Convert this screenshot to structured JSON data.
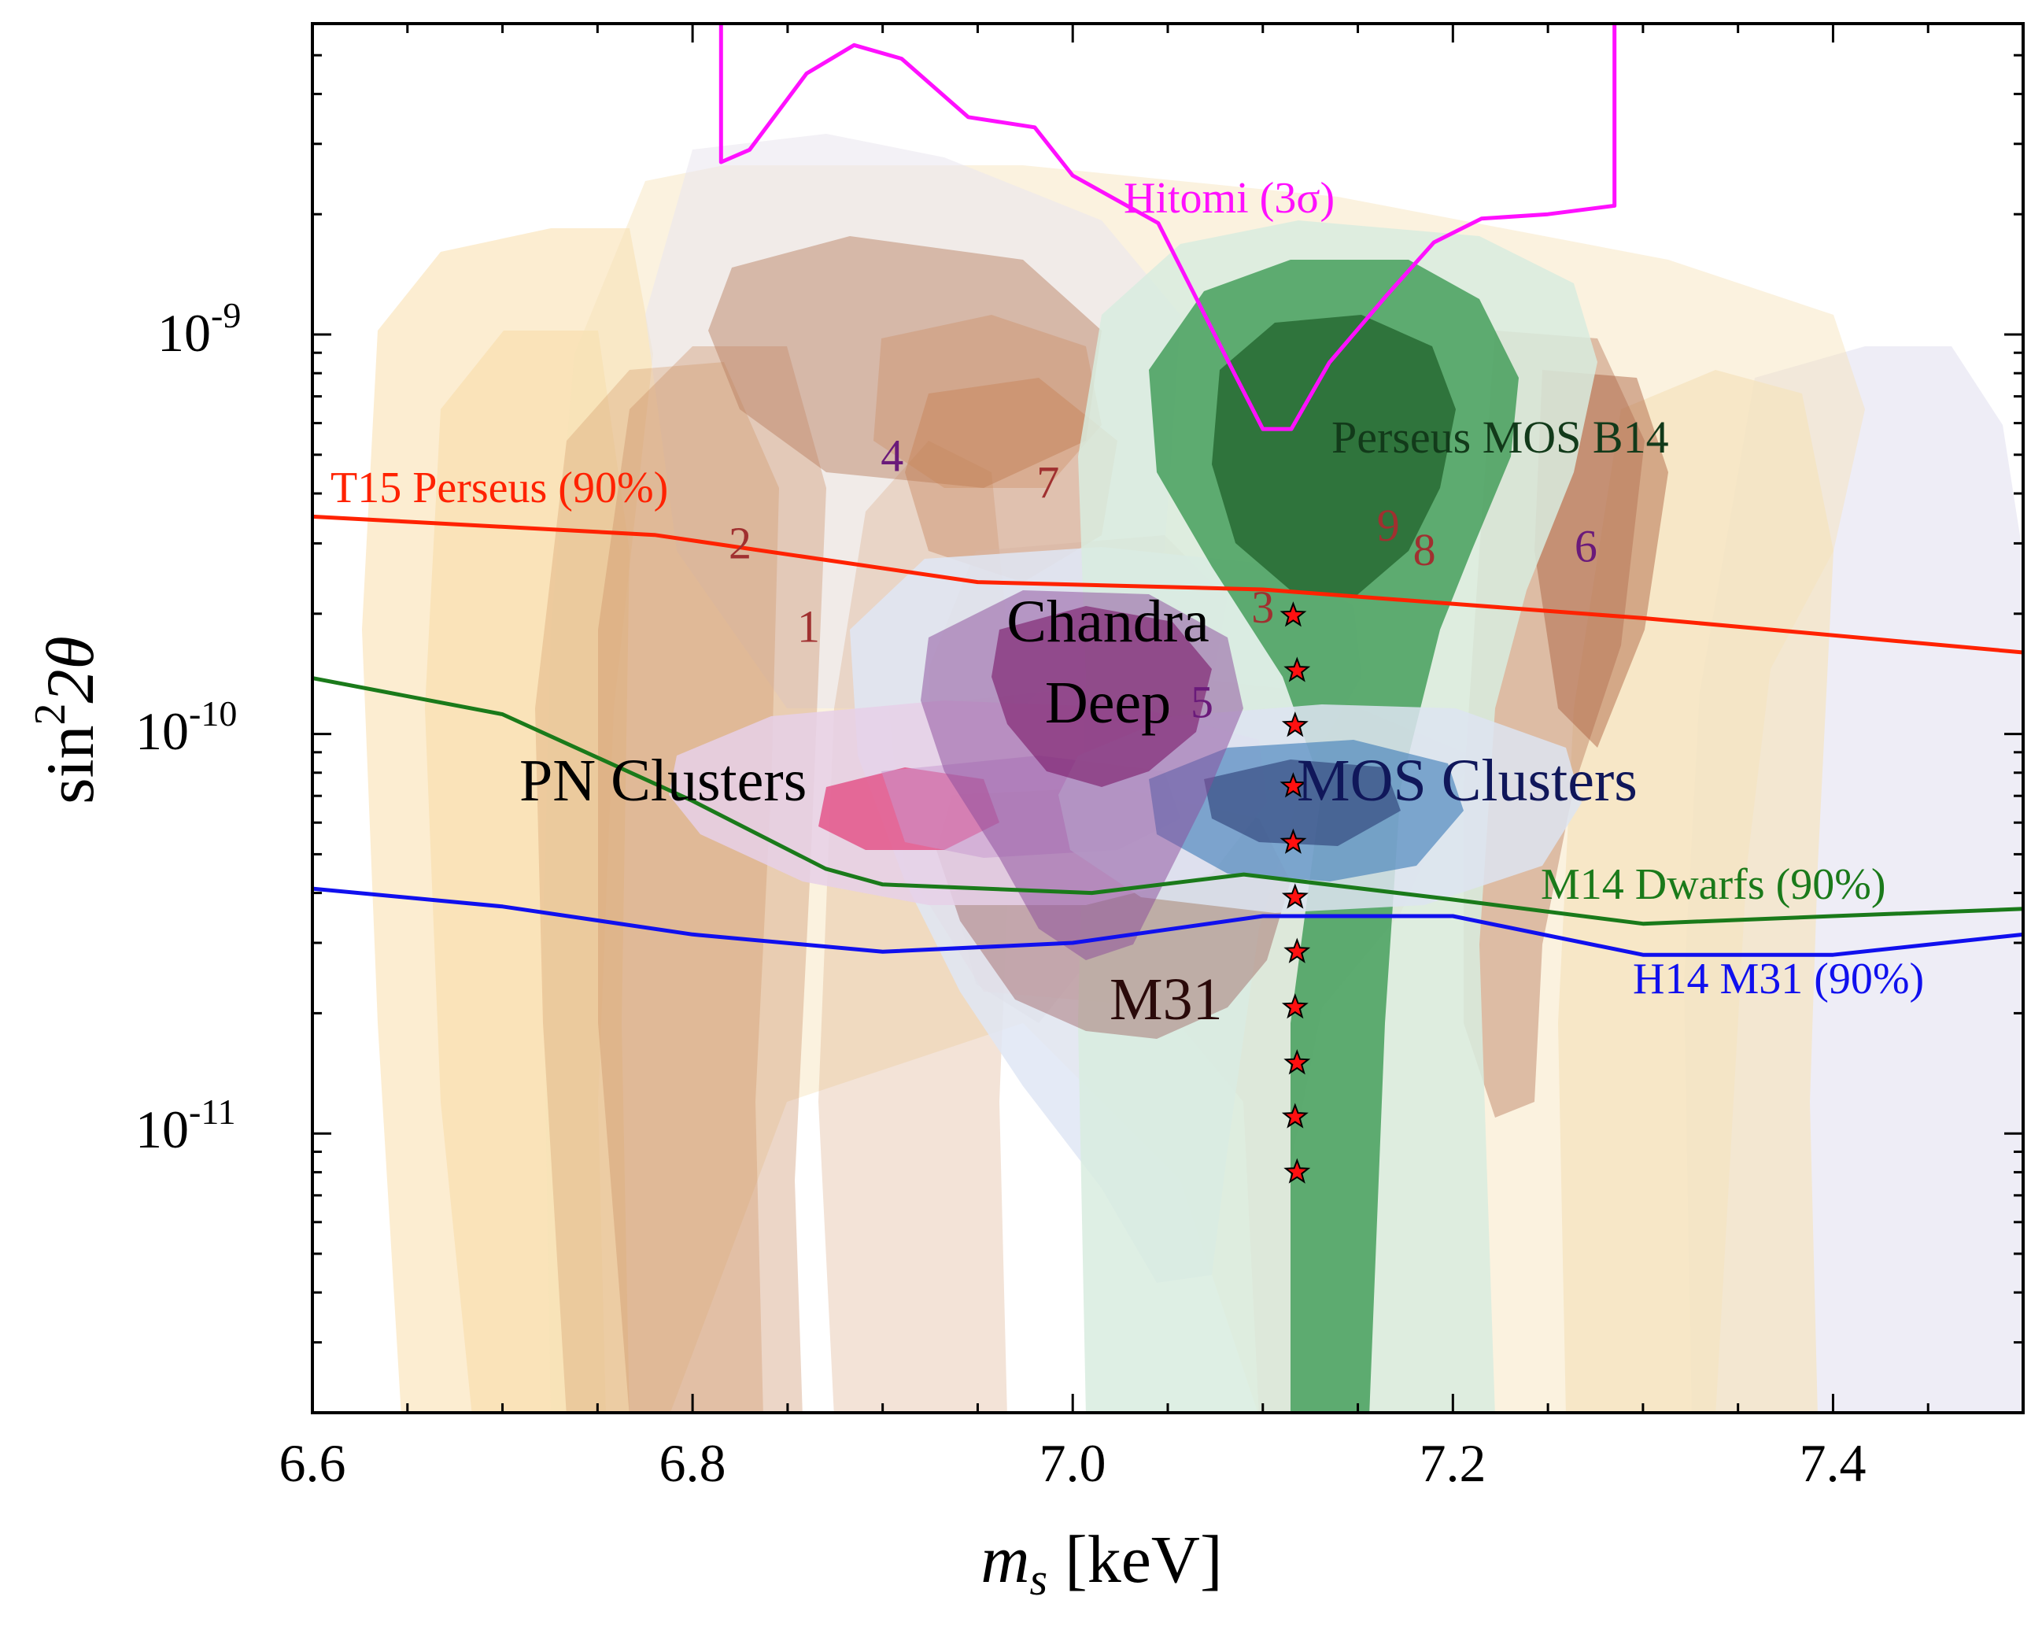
{
  "chart_data": {
    "type": "region",
    "title": "",
    "xlabel": {
      "main": "m",
      "sub": "s",
      "unit": "[keV]"
    },
    "ylabel": {
      "main": "sin",
      "sup": "2",
      "tail": "2θ"
    },
    "xlim": [
      6.6,
      7.5
    ],
    "ylim": [
      2e-12,
      6e-09
    ],
    "yscale": "log",
    "x_ticks": [
      {
        "value": 6.6,
        "label": "6.6"
      },
      {
        "value": 6.8,
        "label": "6.8"
      },
      {
        "value": 7.0,
        "label": "7.0"
      },
      {
        "value": 7.2,
        "label": "7.2"
      },
      {
        "value": 7.4,
        "label": "7.4"
      }
    ],
    "y_ticks": [
      {
        "value": 1e-11,
        "base": "10",
        "exp": "-11"
      },
      {
        "value": 1e-10,
        "base": "10",
        "exp": "-10"
      },
      {
        "value": 1e-09,
        "base": "10",
        "exp": "-9"
      }
    ],
    "lines": [
      {
        "name": "T15 Perseus (90%)",
        "label": "T15 Perseus (90%)",
        "color": "#ff2200",
        "points": [
          [
            6.6,
            3.5e-10
          ],
          [
            6.78,
            3.15e-10
          ],
          [
            6.95,
            2.4e-10
          ],
          [
            7.1,
            2.3e-10
          ],
          [
            7.3,
            1.95e-10
          ],
          [
            7.5,
            1.6e-10
          ]
        ]
      },
      {
        "name": "M14 Dwarfs (90%)",
        "label": "M14 Dwarfs (90%)",
        "color": "#1a7a1a",
        "points": [
          [
            6.6,
            1.38e-10
          ],
          [
            6.7,
            1.12e-10
          ],
          [
            6.8,
            6.8e-11
          ],
          [
            6.87,
            4.6e-11
          ],
          [
            6.9,
            4.2e-11
          ],
          [
            7.01,
            4e-11
          ],
          [
            7.09,
            4.45e-11
          ],
          [
            7.2,
            3.85e-11
          ],
          [
            7.3,
            3.35e-11
          ],
          [
            7.4,
            3.5e-11
          ],
          [
            7.5,
            3.65e-11
          ]
        ]
      },
      {
        "name": "H14 M31 (90%)",
        "label": "H14 M31 (90%)",
        "color": "#1010ee",
        "points": [
          [
            6.6,
            4.1e-11
          ],
          [
            6.7,
            3.7e-11
          ],
          [
            6.8,
            3.15e-11
          ],
          [
            6.9,
            2.85e-11
          ],
          [
            7.0,
            3e-11
          ],
          [
            7.1,
            3.5e-11
          ],
          [
            7.2,
            3.5e-11
          ],
          [
            7.3,
            2.8e-11
          ],
          [
            7.4,
            2.8e-11
          ],
          [
            7.5,
            3.15e-11
          ]
        ]
      },
      {
        "name": "Hitomi (3σ)",
        "label": "Hitomi (3σ)",
        "color": "#ff10ff",
        "points": [
          [
            6.815,
            1e-08
          ],
          [
            6.815,
            2.7e-09
          ],
          [
            6.83,
            2.9e-09
          ],
          [
            6.86,
            4.5e-09
          ],
          [
            6.885,
            5.3e-09
          ],
          [
            6.91,
            4.9e-09
          ],
          [
            6.945,
            3.5e-09
          ],
          [
            6.98,
            3.3e-09
          ],
          [
            7.0,
            2.5e-09
          ],
          [
            7.045,
            1.9e-09
          ],
          [
            7.085,
            8e-10
          ],
          [
            7.1,
            5.8e-10
          ],
          [
            7.115,
            5.8e-10
          ],
          [
            7.135,
            8.5e-10
          ],
          [
            7.165,
            1.25e-09
          ],
          [
            7.19,
            1.7e-09
          ],
          [
            7.215,
            1.95e-09
          ],
          [
            7.25,
            2e-09
          ],
          [
            7.285,
            2.1e-09
          ],
          [
            7.285,
            1e-08
          ]
        ]
      }
    ],
    "regions": [
      {
        "name": "PN Clusters",
        "label": "PN Clusters",
        "color": "#d0206a"
      },
      {
        "name": "MOS Clusters",
        "label": "MOS Clusters",
        "color": "#2a5aa0"
      },
      {
        "name": "Chandra Deep",
        "label_lines": [
          "Chandra",
          "Deep"
        ],
        "color": "#8a1a6a"
      },
      {
        "name": "Perseus MOS B14",
        "label": "Perseus MOS B14",
        "color": "#2a8a3a"
      },
      {
        "name": "M31",
        "label": "M31",
        "color": "#8a3a3a"
      }
    ],
    "number_labels": [
      {
        "text": "1",
        "x": 6.861,
        "y": 1.7e-10,
        "color": "#a03030"
      },
      {
        "text": "2",
        "x": 6.825,
        "y": 2.75e-10,
        "color": "#a03030"
      },
      {
        "text": "3",
        "x": 7.1,
        "y": 1.9e-10,
        "color": "#a03030"
      },
      {
        "text": "4",
        "x": 6.905,
        "y": 4.55e-10,
        "color": "#6a1a7a"
      },
      {
        "text": "5",
        "x": 7.068,
        "y": 1.1e-10,
        "color": "#6a1a7a"
      },
      {
        "text": "6",
        "x": 7.27,
        "y": 2.7e-10,
        "color": "#6a1a7a"
      },
      {
        "text": "7",
        "x": 6.987,
        "y": 3.9e-10,
        "color": "#a03030"
      },
      {
        "text": "8",
        "x": 7.185,
        "y": 2.65e-10,
        "color": "#a03030"
      },
      {
        "text": "9",
        "x": 7.166,
        "y": 3.05e-10,
        "color": "#a03030"
      }
    ],
    "stars": {
      "name": "sample points",
      "color": "#ff1010",
      "points": [
        [
          7.116,
          1.98e-10
        ],
        [
          7.118,
          1.44e-10
        ],
        [
          7.117,
          1.05e-10
        ],
        [
          7.116,
          7.4e-11
        ],
        [
          7.116,
          5.35e-11
        ],
        [
          7.117,
          3.9e-11
        ],
        [
          7.118,
          2.85e-11
        ],
        [
          7.117,
          2.07e-11
        ],
        [
          7.118,
          1.5e-11
        ],
        [
          7.117,
          1.1e-11
        ],
        [
          7.118,
          8e-12
        ]
      ]
    }
  }
}
